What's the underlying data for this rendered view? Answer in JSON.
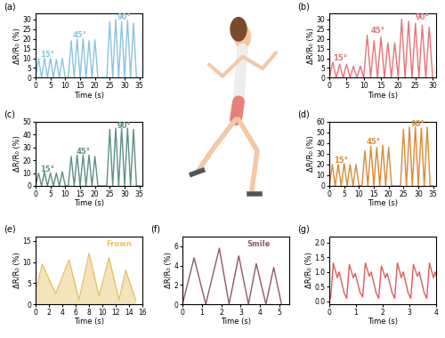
{
  "chart_data": [
    {
      "type": "line",
      "title": "(a)",
      "x_label": "Time (s)",
      "y_label": "ΔR/R₀ (%)",
      "color": "#8cc4dc",
      "x": [
        0,
        1,
        2,
        3,
        4,
        5,
        6,
        7,
        8,
        9,
        10,
        11,
        12,
        13,
        14,
        15,
        16,
        17,
        18,
        19,
        20,
        21,
        22,
        23,
        24,
        25,
        26,
        27,
        28,
        29,
        30,
        31,
        32,
        33,
        34,
        35
      ],
      "values": [
        0,
        10,
        0,
        10,
        0,
        10,
        0,
        9.5,
        0,
        10,
        0,
        0,
        19,
        0,
        20,
        0,
        20,
        0,
        19,
        0,
        19.5,
        0,
        0,
        0,
        0,
        29,
        0,
        30,
        0,
        29,
        0,
        29.5,
        0,
        28,
        0,
        0
      ],
      "xlim": [
        0,
        36
      ],
      "ylim": [
        0,
        33
      ],
      "xticks": [
        0,
        5,
        10,
        15,
        20,
        25,
        30,
        35
      ],
      "yticks": [
        0,
        5,
        10,
        15,
        20,
        25,
        30
      ],
      "annotations": [
        {
          "text": "15°",
          "x": 4,
          "y": 12
        },
        {
          "text": "45°",
          "x": 15,
          "y": 22
        },
        {
          "text": "90°",
          "x": 30,
          "y": 31
        }
      ]
    },
    {
      "type": "line",
      "title": "(b)",
      "x_label": "Time (s)",
      "y_label": "ΔR/R₀ (%)",
      "color": "#e8737a",
      "x": [
        0,
        1,
        2,
        3,
        4,
        5,
        6,
        7,
        8,
        9,
        10,
        11,
        12,
        13,
        14,
        15,
        16,
        17,
        18,
        19,
        20,
        21,
        22,
        23,
        24,
        25,
        26,
        27,
        28,
        29,
        30
      ],
      "values": [
        0,
        8,
        0,
        7,
        0,
        7,
        0,
        6,
        0,
        6,
        0,
        22,
        0,
        19,
        0,
        21,
        0,
        18,
        0,
        18,
        0,
        30,
        0,
        29,
        0,
        28,
        0,
        27,
        0,
        26,
        0
      ],
      "xlim": [
        0,
        31
      ],
      "ylim": [
        0,
        33
      ],
      "xticks": [
        0,
        5,
        10,
        15,
        20,
        25,
        30
      ],
      "yticks": [
        0,
        5,
        10,
        15,
        20,
        25,
        30
      ],
      "annotations": [
        {
          "text": "15°",
          "x": 3,
          "y": 10
        },
        {
          "text": "45°",
          "x": 14,
          "y": 24
        },
        {
          "text": "90°",
          "x": 27,
          "y": 31
        }
      ]
    },
    {
      "type": "line",
      "title": "(c)",
      "x_label": "Time (s)",
      "y_label": "ΔR/R₀ (%)",
      "color": "#5e8f86",
      "x": [
        0,
        1,
        2,
        3,
        4,
        5,
        6,
        7,
        8,
        9,
        10,
        11,
        12,
        13,
        14,
        15,
        16,
        17,
        18,
        19,
        20,
        21,
        22,
        23,
        24,
        25,
        26,
        27,
        28,
        29,
        30,
        31,
        32,
        33,
        34,
        35
      ],
      "values": [
        0,
        10,
        0,
        11,
        0,
        10,
        0,
        10,
        0,
        11,
        0,
        0,
        23,
        0,
        24,
        0,
        24,
        0,
        24,
        0,
        23,
        0,
        0,
        0,
        0,
        44,
        0,
        45,
        0,
        45,
        0,
        45,
        0,
        44,
        0,
        0
      ],
      "xlim": [
        0,
        36
      ],
      "ylim": [
        0,
        50
      ],
      "xticks": [
        0,
        5,
        10,
        15,
        20,
        25,
        30,
        35
      ],
      "yticks": [
        0,
        10,
        20,
        30,
        40,
        50
      ],
      "annotations": [
        {
          "text": "15°",
          "x": 4,
          "y": 13
        },
        {
          "text": "45°",
          "x": 16,
          "y": 27
        },
        {
          "text": "90°",
          "x": 30,
          "y": 47
        }
      ]
    },
    {
      "type": "line",
      "title": "(d)",
      "x_label": "Time (s)",
      "y_label": "ΔR/R₀ (%)",
      "color": "#d98b35",
      "x": [
        0,
        1,
        2,
        3,
        4,
        5,
        6,
        7,
        8,
        9,
        10,
        11,
        12,
        13,
        14,
        15,
        16,
        17,
        18,
        19,
        20,
        21,
        22,
        23,
        24,
        25,
        26,
        27,
        28,
        29,
        30,
        31,
        32,
        33,
        34,
        35
      ],
      "values": [
        0,
        20,
        0,
        20,
        0,
        21,
        0,
        20,
        0,
        20,
        0,
        0,
        33,
        0,
        37,
        0,
        36,
        0,
        38,
        0,
        36,
        0,
        0,
        0,
        0,
        53,
        0,
        55,
        0,
        55,
        0,
        54,
        0,
        55,
        0,
        0
      ],
      "xlim": [
        0,
        36
      ],
      "ylim": [
        0,
        60
      ],
      "xticks": [
        0,
        5,
        10,
        15,
        20,
        25,
        30,
        35
      ],
      "yticks": [
        0,
        10,
        20,
        30,
        40,
        50,
        60
      ],
      "annotations": [
        {
          "text": "15°",
          "x": 4,
          "y": 24
        },
        {
          "text": "45°",
          "x": 15,
          "y": 41
        },
        {
          "text": "90°",
          "x": 30,
          "y": 58
        }
      ]
    },
    {
      "type": "area",
      "title": "(e)",
      "x_label": "Time (s)",
      "y_label": "ΔR/R₀ (%)",
      "color": "#e8c36a",
      "x": [
        0,
        1,
        3,
        5,
        6.5,
        8,
        9.5,
        11,
        12.5,
        13.5,
        15
      ],
      "values": [
        3,
        9.5,
        2.5,
        10.5,
        1,
        12,
        2,
        11,
        1,
        8,
        1
      ],
      "xlim": [
        0,
        16
      ],
      "ylim": [
        0,
        16
      ],
      "xticks": [
        0,
        2,
        4,
        6,
        8,
        10,
        12,
        14,
        16
      ],
      "yticks": [
        0,
        5,
        10,
        15
      ],
      "annotations": [
        {
          "text": "Frown",
          "x": 12.5,
          "y": 14.3
        }
      ]
    },
    {
      "type": "line",
      "title": "(f)",
      "x_label": "Time (s)",
      "y_label": "ΔR/R₀ (%)",
      "color": "#8b5a6a",
      "x": [
        0,
        0.6,
        1.2,
        1.9,
        2.4,
        2.9,
        3.4,
        3.8,
        4.3,
        4.7,
        5.1
      ],
      "values": [
        0,
        4.8,
        0,
        5.8,
        0,
        5,
        0,
        4.2,
        0,
        3.8,
        0
      ],
      "xlim": [
        0,
        5.5
      ],
      "ylim": [
        0,
        7
      ],
      "xticks": [
        0,
        1,
        2,
        3,
        4,
        5
      ],
      "yticks": [
        0,
        2,
        4,
        6
      ],
      "annotations": [
        {
          "text": "Smile",
          "x": 3.9,
          "y": 6.2
        }
      ]
    },
    {
      "type": "line",
      "title": "(g)",
      "x_label": "Time (s)",
      "y_label": "ΔR/R₀ (%)",
      "color": "#e05a5a",
      "x": [
        0.05,
        0.15,
        0.3,
        0.37,
        0.55,
        0.65,
        0.75,
        0.9,
        0.97,
        1.15,
        1.25,
        1.35,
        1.5,
        1.57,
        1.75,
        1.85,
        1.95,
        2.1,
        2.17,
        2.35,
        2.45,
        2.55,
        2.7,
        2.77,
        2.95,
        3.05,
        3.15,
        3.3,
        3.37,
        3.55,
        3.65,
        3.75,
        3.9,
        3.97,
        4.15
      ],
      "values": [
        0.1,
        1.3,
        0.8,
        1.0,
        0.3,
        0.1,
        1.25,
        0.8,
        0.95,
        0.3,
        0.15,
        1.3,
        0.85,
        1.0,
        0.3,
        0.1,
        1.2,
        0.8,
        0.95,
        0.3,
        0.1,
        1.3,
        0.8,
        1.0,
        0.3,
        0.1,
        1.25,
        0.85,
        1.0,
        0.3,
        0.1,
        1.3,
        0.8,
        1.0,
        0.3
      ],
      "xlim": [
        0,
        4
      ],
      "ylim": [
        -0.1,
        2.2
      ],
      "xticks": [
        0,
        1,
        2,
        3,
        4
      ],
      "yticks": [
        {
          "value": 0,
          "label": "0.0"
        },
        {
          "value": 0.5,
          "label": "0.5"
        },
        {
          "value": 1,
          "label": "1.0"
        },
        {
          "value": 1.5,
          "label": "1.5"
        },
        {
          "value": 2,
          "label": "2.0"
        }
      ],
      "annotations": []
    }
  ]
}
